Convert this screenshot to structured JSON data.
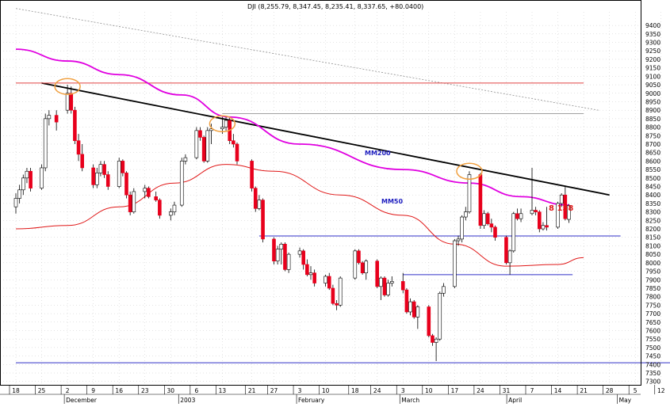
{
  "header": {
    "text": "DJI (8,255.79, 8,347.45, 8,235.41, 8,337.65, +80.0400)"
  },
  "colors": {
    "bull": "#ffffff",
    "bear": "#e8001c",
    "wick": "#000000",
    "mm200": "#e000e0",
    "mm50": "#e01818",
    "trend": "#000000",
    "support": "#3030c8",
    "resist": "#e04040",
    "circle": "#f0a040",
    "grid": "#c8c8c8",
    "label_blue": "#2020c0",
    "label_red": "#e01818"
  },
  "labels": {
    "mm200": "MM200",
    "mm50": "MM50",
    "level": "8 158"
  },
  "chart_data": {
    "type": "candlestick",
    "title": "DJI (8,255.79, 8,347.45, 8,235.41, 8,337.65, +80.0400)",
    "ylim": [
      7280,
      9480
    ],
    "y_ticks": [
      9400,
      9350,
      9300,
      9250,
      9200,
      9150,
      9100,
      9050,
      9000,
      8950,
      8900,
      8850,
      8800,
      8750,
      8700,
      8650,
      8600,
      8550,
      8500,
      8450,
      8400,
      8350,
      8300,
      8250,
      8200,
      8150,
      8100,
      8050,
      8000,
      7950,
      7900,
      7850,
      7800,
      7750,
      7700,
      7650,
      7600,
      7550,
      7500,
      7450,
      7400,
      7350,
      7300
    ],
    "x_ticks": [
      "18",
      "25",
      "2",
      "9",
      "16",
      "23",
      "30",
      "6",
      "13",
      "21",
      "27",
      "3",
      "10",
      "18",
      "24",
      "3",
      "10",
      "17",
      "24",
      "31",
      "7",
      "14",
      "21",
      "28",
      "5",
      "12"
    ],
    "month_labels": [
      "December",
      "2003",
      "February",
      "March",
      "April",
      "May"
    ],
    "candles": [
      {
        "d": "2002-11-18",
        "o": 8330,
        "h": 8410,
        "l": 8290,
        "c": 8380
      },
      {
        "d": "2002-11-19",
        "o": 8380,
        "h": 8460,
        "l": 8350,
        "c": 8430
      },
      {
        "d": "2002-11-20",
        "o": 8430,
        "h": 8520,
        "l": 8400,
        "c": 8500
      },
      {
        "d": "2002-11-21",
        "o": 8500,
        "h": 8560,
        "l": 8470,
        "c": 8540
      },
      {
        "d": "2002-11-22",
        "o": 8540,
        "h": 8560,
        "l": 8420,
        "c": 8440
      },
      {
        "d": "2002-11-25",
        "o": 8440,
        "h": 8580,
        "l": 8430,
        "c": 8560
      },
      {
        "d": "2002-11-26",
        "o": 8560,
        "h": 8880,
        "l": 8540,
        "c": 8850
      },
      {
        "d": "2002-11-27",
        "o": 8850,
        "h": 8900,
        "l": 8810,
        "c": 8870
      },
      {
        "d": "2002-11-29",
        "o": 8870,
        "h": 8900,
        "l": 8780,
        "c": 8830
      },
      {
        "d": "2002-12-02",
        "o": 8900,
        "h": 9050,
        "l": 8880,
        "c": 9000
      },
      {
        "d": "2002-12-03",
        "o": 9000,
        "h": 9040,
        "l": 8880,
        "c": 8900
      },
      {
        "d": "2002-12-04",
        "o": 8900,
        "h": 8920,
        "l": 8700,
        "c": 8720
      },
      {
        "d": "2002-12-05",
        "o": 8720,
        "h": 8760,
        "l": 8600,
        "c": 8640
      },
      {
        "d": "2002-12-06",
        "o": 8640,
        "h": 8700,
        "l": 8540,
        "c": 8560
      },
      {
        "d": "2002-12-09",
        "o": 8560,
        "h": 8580,
        "l": 8440,
        "c": 8460
      },
      {
        "d": "2002-12-10",
        "o": 8460,
        "h": 8560,
        "l": 8440,
        "c": 8530
      },
      {
        "d": "2002-12-11",
        "o": 8530,
        "h": 8600,
        "l": 8510,
        "c": 8580
      },
      {
        "d": "2002-12-12",
        "o": 8580,
        "h": 8600,
        "l": 8500,
        "c": 8520
      },
      {
        "d": "2002-12-13",
        "o": 8520,
        "h": 8540,
        "l": 8430,
        "c": 8450
      },
      {
        "d": "2002-12-16",
        "o": 8450,
        "h": 8620,
        "l": 8440,
        "c": 8600
      },
      {
        "d": "2002-12-17",
        "o": 8600,
        "h": 8610,
        "l": 8510,
        "c": 8530
      },
      {
        "d": "2002-12-18",
        "o": 8530,
        "h": 8540,
        "l": 8380,
        "c": 8400
      },
      {
        "d": "2002-12-19",
        "o": 8400,
        "h": 8420,
        "l": 8280,
        "c": 8300
      },
      {
        "d": "2002-12-20",
        "o": 8300,
        "h": 8440,
        "l": 8290,
        "c": 8420
      },
      {
        "d": "2002-12-23",
        "o": 8420,
        "h": 8460,
        "l": 8380,
        "c": 8440
      },
      {
        "d": "2002-12-24",
        "o": 8440,
        "h": 8450,
        "l": 8380,
        "c": 8390
      },
      {
        "d": "2002-12-26",
        "o": 8390,
        "h": 8420,
        "l": 8360,
        "c": 8370
      },
      {
        "d": "2002-12-27",
        "o": 8370,
        "h": 8380,
        "l": 8260,
        "c": 8280
      },
      {
        "d": "2002-12-30",
        "o": 8280,
        "h": 8320,
        "l": 8250,
        "c": 8300
      },
      {
        "d": "2002-12-31",
        "o": 8300,
        "h": 8360,
        "l": 8280,
        "c": 8340
      },
      {
        "d": "2003-01-02",
        "o": 8340,
        "h": 8620,
        "l": 8330,
        "c": 8600
      },
      {
        "d": "2003-01-03",
        "o": 8600,
        "h": 8640,
        "l": 8580,
        "c": 8620
      },
      {
        "d": "2003-01-06",
        "o": 8620,
        "h": 8800,
        "l": 8610,
        "c": 8780
      },
      {
        "d": "2003-01-07",
        "o": 8780,
        "h": 8800,
        "l": 8720,
        "c": 8740
      },
      {
        "d": "2003-01-08",
        "o": 8740,
        "h": 8750,
        "l": 8590,
        "c": 8600
      },
      {
        "d": "2003-01-09",
        "o": 8600,
        "h": 8800,
        "l": 8590,
        "c": 8780
      },
      {
        "d": "2003-01-10",
        "o": 8780,
        "h": 8820,
        "l": 8700,
        "c": 8790
      },
      {
        "d": "2003-01-13",
        "o": 8790,
        "h": 8860,
        "l": 8760,
        "c": 8800
      },
      {
        "d": "2003-01-14",
        "o": 8800,
        "h": 8860,
        "l": 8780,
        "c": 8840
      },
      {
        "d": "2003-01-15",
        "o": 8840,
        "h": 8860,
        "l": 8700,
        "c": 8720
      },
      {
        "d": "2003-01-16",
        "o": 8720,
        "h": 8760,
        "l": 8680,
        "c": 8700
      },
      {
        "d": "2003-01-17",
        "o": 8700,
        "h": 8710,
        "l": 8580,
        "c": 8600
      },
      {
        "d": "2003-01-21",
        "o": 8600,
        "h": 8610,
        "l": 8420,
        "c": 8440
      },
      {
        "d": "2003-01-22",
        "o": 8440,
        "h": 8450,
        "l": 8300,
        "c": 8320
      },
      {
        "d": "2003-01-23",
        "o": 8320,
        "h": 8400,
        "l": 8310,
        "c": 8370
      },
      {
        "d": "2003-01-24",
        "o": 8370,
        "h": 8380,
        "l": 8120,
        "c": 8140
      },
      {
        "d": "2003-01-27",
        "o": 8140,
        "h": 8150,
        "l": 7990,
        "c": 8010
      },
      {
        "d": "2003-01-28",
        "o": 8010,
        "h": 8100,
        "l": 7990,
        "c": 8080
      },
      {
        "d": "2003-01-29",
        "o": 8080,
        "h": 8120,
        "l": 7990,
        "c": 8110
      },
      {
        "d": "2003-01-30",
        "o": 8110,
        "h": 8120,
        "l": 7950,
        "c": 7960
      },
      {
        "d": "2003-01-31",
        "o": 7960,
        "h": 8060,
        "l": 7940,
        "c": 8050
      },
      {
        "d": "2003-02-03",
        "o": 8050,
        "h": 8090,
        "l": 8030,
        "c": 8070
      },
      {
        "d": "2003-02-04",
        "o": 8070,
        "h": 8080,
        "l": 7960,
        "c": 7990
      },
      {
        "d": "2003-02-05",
        "o": 7990,
        "h": 8020,
        "l": 7920,
        "c": 7930
      },
      {
        "d": "2003-02-06",
        "o": 7930,
        "h": 7980,
        "l": 7900,
        "c": 7940
      },
      {
        "d": "2003-02-07",
        "o": 7940,
        "h": 7960,
        "l": 7860,
        "c": 7880
      },
      {
        "d": "2003-02-10",
        "o": 7880,
        "h": 7930,
        "l": 7860,
        "c": 7920
      },
      {
        "d": "2003-02-11",
        "o": 7920,
        "h": 7940,
        "l": 7840,
        "c": 7850
      },
      {
        "d": "2003-02-12",
        "o": 7850,
        "h": 7870,
        "l": 7750,
        "c": 7760
      },
      {
        "d": "2003-02-13",
        "o": 7760,
        "h": 7780,
        "l": 7720,
        "c": 7750
      },
      {
        "d": "2003-02-14",
        "o": 7750,
        "h": 7920,
        "l": 7740,
        "c": 7910
      },
      {
        "d": "2003-02-18",
        "o": 7910,
        "h": 8080,
        "l": 7900,
        "c": 8070
      },
      {
        "d": "2003-02-19",
        "o": 8070,
        "h": 8080,
        "l": 7990,
        "c": 8000
      },
      {
        "d": "2003-02-20",
        "o": 8000,
        "h": 8010,
        "l": 7930,
        "c": 7940
      },
      {
        "d": "2003-02-21",
        "o": 7940,
        "h": 8020,
        "l": 7900,
        "c": 8010
      },
      {
        "d": "2003-02-24",
        "o": 8010,
        "h": 8020,
        "l": 7850,
        "c": 7860
      },
      {
        "d": "2003-02-25",
        "o": 7860,
        "h": 7920,
        "l": 7780,
        "c": 7910
      },
      {
        "d": "2003-02-26",
        "o": 7910,
        "h": 7920,
        "l": 7800,
        "c": 7810
      },
      {
        "d": "2003-02-27",
        "o": 7810,
        "h": 7900,
        "l": 7800,
        "c": 7880
      },
      {
        "d": "2003-02-28",
        "o": 7880,
        "h": 7920,
        "l": 7860,
        "c": 7890
      },
      {
        "d": "2003-03-03",
        "o": 7890,
        "h": 7940,
        "l": 7820,
        "c": 7840
      },
      {
        "d": "2003-03-04",
        "o": 7840,
        "h": 7850,
        "l": 7700,
        "c": 7710
      },
      {
        "d": "2003-03-05",
        "o": 7710,
        "h": 7790,
        "l": 7690,
        "c": 7770
      },
      {
        "d": "2003-03-06",
        "o": 7770,
        "h": 7780,
        "l": 7670,
        "c": 7680
      },
      {
        "d": "2003-03-07",
        "o": 7680,
        "h": 7750,
        "l": 7610,
        "c": 7740
      },
      {
        "d": "2003-03-10",
        "o": 7740,
        "h": 7750,
        "l": 7560,
        "c": 7570
      },
      {
        "d": "2003-03-11",
        "o": 7570,
        "h": 7580,
        "l": 7510,
        "c": 7530
      },
      {
        "d": "2003-03-12",
        "o": 7530,
        "h": 7560,
        "l": 7420,
        "c": 7550
      },
      {
        "d": "2003-03-13",
        "o": 7550,
        "h": 7830,
        "l": 7540,
        "c": 7820
      },
      {
        "d": "2003-03-14",
        "o": 7820,
        "h": 7880,
        "l": 7800,
        "c": 7860
      },
      {
        "d": "2003-03-17",
        "o": 7860,
        "h": 8140,
        "l": 7850,
        "c": 8130
      },
      {
        "d": "2003-03-18",
        "o": 8130,
        "h": 8160,
        "l": 8100,
        "c": 8140
      },
      {
        "d": "2003-03-19",
        "o": 8140,
        "h": 8280,
        "l": 8120,
        "c": 8270
      },
      {
        "d": "2003-03-20",
        "o": 8270,
        "h": 8330,
        "l": 8250,
        "c": 8300
      },
      {
        "d": "2003-03-21",
        "o": 8300,
        "h": 8540,
        "l": 8290,
        "c": 8520
      },
      {
        "d": "2003-03-24",
        "o": 8520,
        "h": 8530,
        "l": 8200,
        "c": 8220
      },
      {
        "d": "2003-03-25",
        "o": 8220,
        "h": 8310,
        "l": 8200,
        "c": 8290
      },
      {
        "d": "2003-03-26",
        "o": 8290,
        "h": 8300,
        "l": 8220,
        "c": 8230
      },
      {
        "d": "2003-03-27",
        "o": 8230,
        "h": 8260,
        "l": 8180,
        "c": 8210
      },
      {
        "d": "2003-03-28",
        "o": 8210,
        "h": 8220,
        "l": 8130,
        "c": 8150
      },
      {
        "d": "2003-03-31",
        "o": 8150,
        "h": 8160,
        "l": 7990,
        "c": 8000
      },
      {
        "d": "2003-04-01",
        "o": 8000,
        "h": 8080,
        "l": 7930,
        "c": 8070
      },
      {
        "d": "2003-04-02",
        "o": 8070,
        "h": 8300,
        "l": 8060,
        "c": 8290
      },
      {
        "d": "2003-04-03",
        "o": 8290,
        "h": 8320,
        "l": 8250,
        "c": 8260
      },
      {
        "d": "2003-04-04",
        "o": 8260,
        "h": 8320,
        "l": 8240,
        "c": 8290
      },
      {
        "d": "2003-04-07",
        "o": 8290,
        "h": 8560,
        "l": 8280,
        "c": 8310
      },
      {
        "d": "2003-04-08",
        "o": 8310,
        "h": 8330,
        "l": 8280,
        "c": 8300
      },
      {
        "d": "2003-04-09",
        "o": 8300,
        "h": 8310,
        "l": 8180,
        "c": 8200
      },
      {
        "d": "2003-04-10",
        "o": 8200,
        "h": 8240,
        "l": 8190,
        "c": 8220
      },
      {
        "d": "2003-04-11",
        "o": 8220,
        "h": 8330,
        "l": 8190,
        "c": 8210
      },
      {
        "d": "2003-04-14",
        "o": 8210,
        "h": 8360,
        "l": 8200,
        "c": 8350
      },
      {
        "d": "2003-04-15",
        "o": 8350,
        "h": 8410,
        "l": 8330,
        "c": 8400
      },
      {
        "d": "2003-04-16",
        "o": 8400,
        "h": 8450,
        "l": 8250,
        "c": 8260
      },
      {
        "d": "2003-04-17",
        "o": 8256,
        "h": 8347,
        "l": 8235,
        "c": 8338
      }
    ],
    "series": [
      {
        "name": "MM200",
        "points": [
          [
            "2002-11-18",
            9260
          ],
          [
            "2002-12-02",
            9190
          ],
          [
            "2002-12-16",
            9110
          ],
          [
            "2003-01-02",
            8990
          ],
          [
            "2003-01-15",
            8860
          ],
          [
            "2003-02-03",
            8700
          ],
          [
            "2003-03-03",
            8550
          ],
          [
            "2003-03-21",
            8470
          ],
          [
            "2003-04-04",
            8390
          ],
          [
            "2003-04-17",
            8340
          ]
        ]
      },
      {
        "name": "MM50",
        "points": [
          [
            "2002-11-18",
            8200
          ],
          [
            "2002-12-02",
            8220
          ],
          [
            "2002-12-16",
            8330
          ],
          [
            "2002-12-31",
            8470
          ],
          [
            "2003-01-14",
            8580
          ],
          [
            "2003-01-27",
            8540
          ],
          [
            "2003-02-14",
            8400
          ],
          [
            "2003-03-03",
            8280
          ],
          [
            "2003-03-17",
            8110
          ],
          [
            "2003-03-31",
            7980
          ],
          [
            "2003-04-14",
            7990
          ],
          [
            "2003-04-21",
            8030
          ]
        ]
      }
    ],
    "lines": [
      {
        "kind": "trend",
        "from": [
          "2002-11-25",
          9060
        ],
        "to": [
          "2003-04-28",
          8400
        ]
      },
      {
        "kind": "channel-upper",
        "from": [
          "2002-11-18",
          9500
        ],
        "to": [
          "2003-04-25",
          8900
        ]
      },
      {
        "kind": "resistance",
        "y": 9060,
        "from": "2002-11-18",
        "to": "2003-04-21"
      },
      {
        "kind": "gray-level",
        "y": 8880,
        "from": "2003-01-13",
        "to": "2003-04-21"
      },
      {
        "kind": "support",
        "y": 8158,
        "from": "2003-01-23",
        "to": "2003-05-01"
      },
      {
        "kind": "support",
        "y": 7930,
        "from": "2003-03-03",
        "to": "2003-04-18"
      },
      {
        "kind": "support",
        "y": 7410,
        "from": "2002-11-18",
        "to": "2003-05-15"
      }
    ],
    "annotations": [
      {
        "kind": "circle",
        "date": "2002-12-02",
        "y": 9040
      },
      {
        "kind": "circle",
        "date": "2003-01-13",
        "y": 8820
      },
      {
        "kind": "circle",
        "date": "2003-03-21",
        "y": 8540
      }
    ]
  }
}
